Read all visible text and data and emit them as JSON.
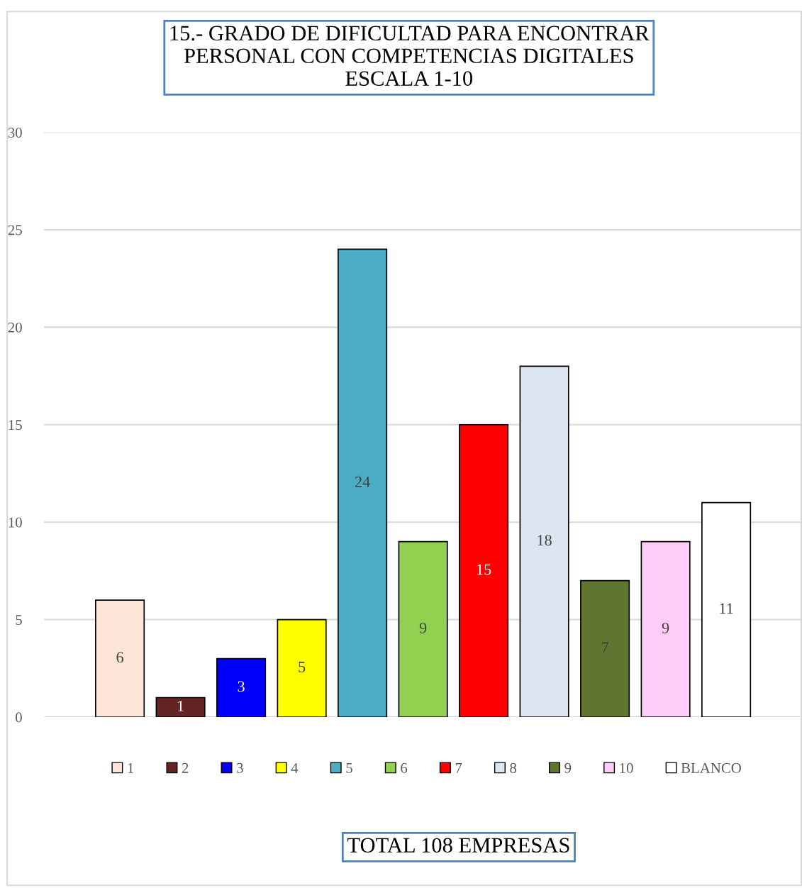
{
  "chart_data": {
    "type": "bar",
    "title": "15.- GRADO DE DIFICULTAD PARA ENCONTRAR\nPERSONAL CON COMPETENCIAS DIGITALES\nESCALA 1-10",
    "categories": [
      null
    ],
    "series": [
      {
        "name": "1",
        "color": "#fce4d6",
        "values": [
          6
        ]
      },
      {
        "name": "2",
        "color": "#632523",
        "values": [
          1
        ]
      },
      {
        "name": "3",
        "color": "#0000ff",
        "values": [
          3
        ]
      },
      {
        "name": "4",
        "color": "#ffff00",
        "values": [
          5
        ]
      },
      {
        "name": "5",
        "color": "#4bacc6",
        "values": [
          24
        ]
      },
      {
        "name": "6",
        "color": "#92d050",
        "values": [
          9
        ]
      },
      {
        "name": "7",
        "color": "#ff0000",
        "values": [
          15
        ]
      },
      {
        "name": "8",
        "color": "#dce6f2",
        "values": [
          18
        ]
      },
      {
        "name": "9",
        "color": "#5f7530",
        "values": [
          7
        ]
      },
      {
        "name": "10",
        "color": "#ffccf7",
        "values": [
          9
        ]
      },
      {
        "name": "BLANCO",
        "color": "#ffffff",
        "values": [
          11
        ]
      }
    ],
    "ylim": [
      0,
      30
    ],
    "yticks": [
      0,
      5,
      10,
      15,
      20,
      25,
      30
    ],
    "grid": "y",
    "legend": "bottom",
    "data_labels": true,
    "annotations": [
      "TOTAL 108 EMPRESAS"
    ]
  }
}
